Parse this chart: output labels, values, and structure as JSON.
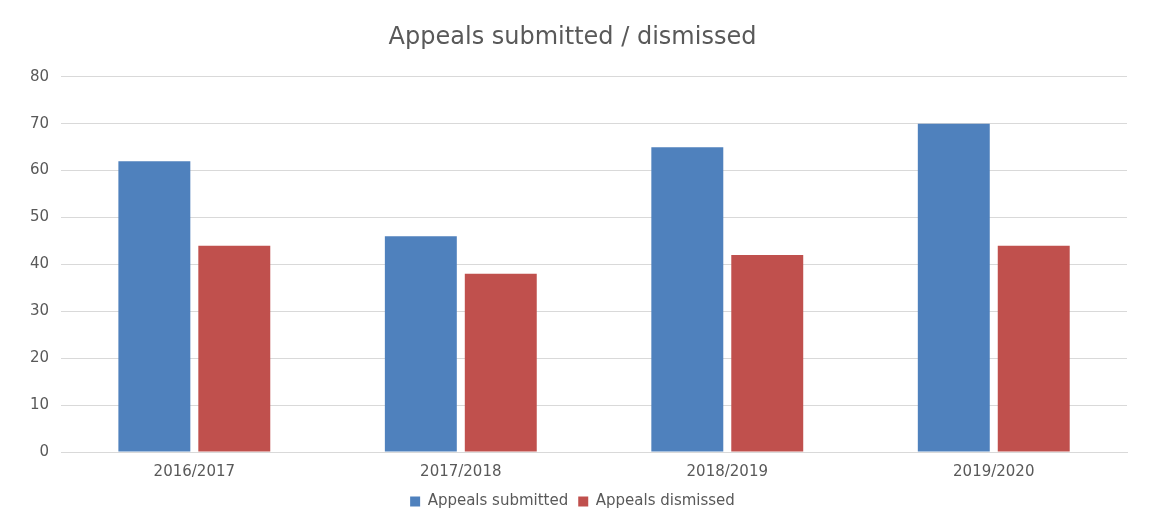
{
  "chart_data": {
    "type": "bar",
    "title": "Appeals submitted / dismissed",
    "categories": [
      "2016/2017",
      "2017/2018",
      "2018/2019",
      "2019/2020"
    ],
    "series": [
      {
        "name": "Appeals submitted",
        "color": "#4f81bd",
        "values": [
          62,
          46,
          65,
          70
        ]
      },
      {
        "name": "Appeals dismissed",
        "color": "#c0504d",
        "values": [
          44,
          38,
          42,
          44
        ]
      }
    ],
    "ylim": [
      0,
      80
    ],
    "yticks": [
      0,
      10,
      20,
      30,
      40,
      50,
      60,
      70,
      80
    ],
    "grid": "y",
    "legend": "bottom"
  }
}
